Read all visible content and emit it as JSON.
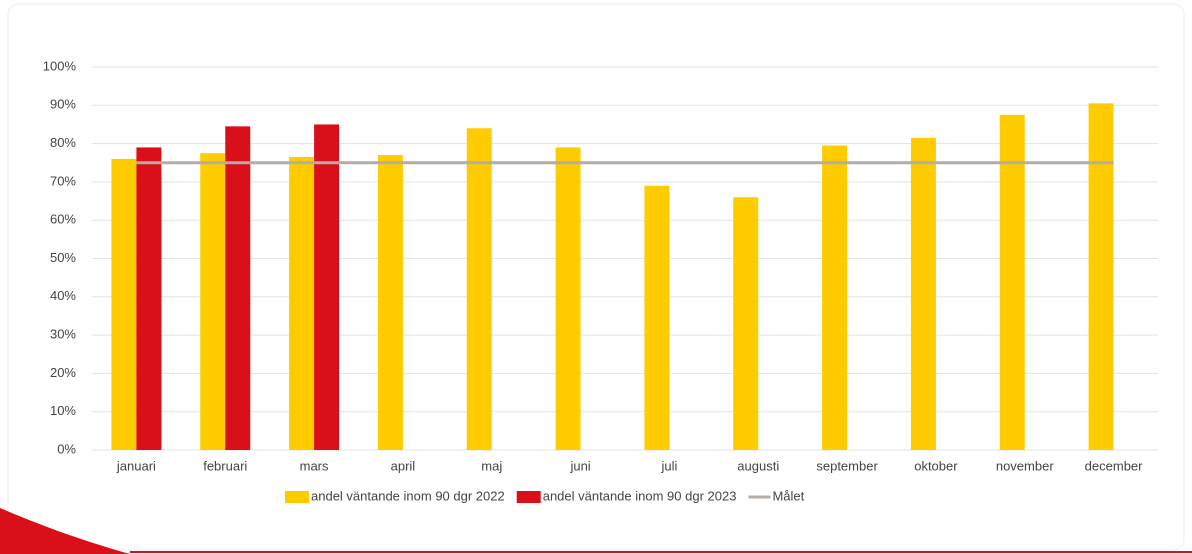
{
  "chart_data": {
    "type": "bar",
    "categories": [
      "januari",
      "februari",
      "mars",
      "april",
      "maj",
      "juni",
      "juli",
      "augusti",
      "september",
      "oktober",
      "november",
      "december"
    ],
    "series": [
      {
        "name": "andel väntande inom 90 dgr 2022",
        "color": "#ffcc00",
        "values": [
          76,
          77.5,
          76.5,
          77,
          84,
          79,
          69,
          66,
          79.5,
          81.5,
          87.5,
          90.5
        ]
      },
      {
        "name": "andel väntande inom 90 dgr 2023",
        "color": "#d9101a",
        "values": [
          79,
          84.5,
          85,
          null,
          null,
          null,
          null,
          null,
          null,
          null,
          null,
          null
        ]
      },
      {
        "name": "Målet",
        "type": "line",
        "color": "#b4aca6",
        "values": [
          75,
          75,
          75,
          75,
          75,
          75,
          75,
          75,
          75,
          75,
          75,
          75
        ]
      }
    ],
    "ylim": [
      0,
      100
    ],
    "yticks": [
      {
        "value": 0,
        "label": "0%"
      },
      {
        "value": 10,
        "label": "10%"
      },
      {
        "value": 20,
        "label": "20%"
      },
      {
        "value": 30,
        "label": "30%"
      },
      {
        "value": 40,
        "label": "40%"
      },
      {
        "value": 50,
        "label": "50%"
      },
      {
        "value": 60,
        "label": "60%"
      },
      {
        "value": 70,
        "label": "70%"
      },
      {
        "value": 80,
        "label": "80%"
      },
      {
        "value": 90,
        "label": "90%"
      },
      {
        "value": 100,
        "label": "100%"
      }
    ],
    "grid": true,
    "legend": "bottom"
  }
}
